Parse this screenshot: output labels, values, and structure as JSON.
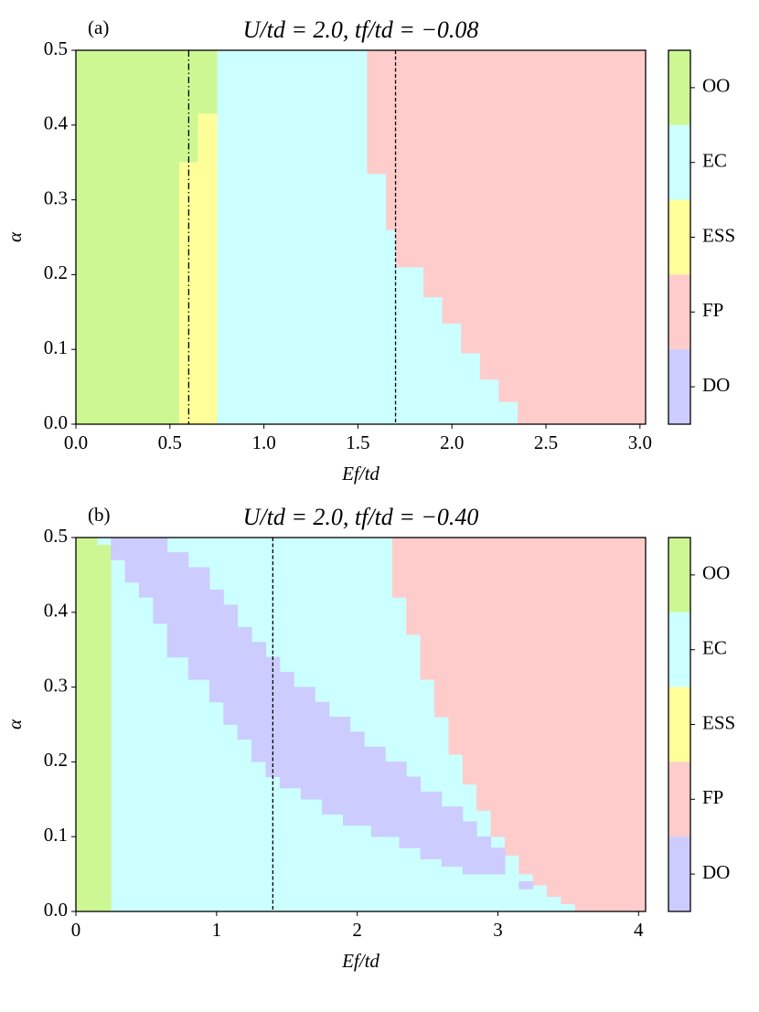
{
  "chart_data": [
    {
      "type": "phase",
      "panel_label": "(a)",
      "title": "U/td = 2.0,  tf/td = −0.08",
      "xlabel": "Ef/td",
      "ylabel": "α",
      "xlim": [
        0,
        3.03
      ],
      "ylim": [
        0,
        0.5
      ],
      "xticks": [
        {
          "value": 0,
          "label": "0.0"
        },
        {
          "value": 0.5,
          "label": "0.5"
        },
        {
          "value": 1,
          "label": "1.0"
        },
        {
          "value": 1.5,
          "label": "1.5"
        },
        {
          "value": 2,
          "label": "2.0"
        },
        {
          "value": 2.5,
          "label": "2.5"
        },
        {
          "value": 3,
          "label": "3.0"
        }
      ],
      "yticks": [
        {
          "value": 0,
          "label": "0.0"
        },
        0.1,
        0.2,
        0.3,
        0.4,
        0.5
      ],
      "background": "#ccffff",
      "regions": [
        {
          "color": "#cdf793",
          "x": [
            0,
            0.55,
            0.55,
            0.65,
            0.65,
            0.75,
            0.75,
            0
          ],
          "y": [
            0,
            0,
            0.35,
            0.35,
            0.415,
            0.415,
            0.5,
            0.5
          ]
        },
        {
          "color": "#ffff99",
          "x": [
            0.55,
            0.75,
            0.75,
            0.65,
            0.65,
            0.55
          ],
          "y": [
            0,
            0,
            0.415,
            0.415,
            0.35,
            0.35
          ]
        },
        {
          "color": "#ffcccc",
          "x": [
            1.55,
            3.03,
            3.03,
            2.35,
            2.35,
            2.25,
            2.25,
            2.15,
            2.15,
            2.05,
            2.05,
            1.95,
            1.95,
            1.85,
            1.85,
            1.7,
            1.7,
            1.65,
            1.65,
            1.55
          ],
          "y": [
            0.5,
            0.5,
            0,
            0,
            0.03,
            0.03,
            0.06,
            0.06,
            0.095,
            0.095,
            0.135,
            0.135,
            0.17,
            0.17,
            0.21,
            0.21,
            0.26,
            0.26,
            0.335,
            0.335
          ]
        }
      ],
      "vlines": [
        {
          "x": 0.6,
          "style": "dashdot"
        },
        {
          "x": 1.7,
          "style": "dashed"
        }
      ],
      "colorbar": {
        "labels": [
          "OO",
          "EC",
          "ESS",
          "FP",
          "DO"
        ],
        "colors": [
          "#cdf793",
          "#ccffff",
          "#ffff99",
          "#ffcccc",
          "#ccccff"
        ]
      }
    },
    {
      "type": "phase",
      "panel_label": "(b)",
      "title": "U/td = 2.0,  tf/td = −0.40",
      "xlabel": "Ef/td",
      "ylabel": "α",
      "xlim": [
        0,
        4.05
      ],
      "ylim": [
        0,
        0.5
      ],
      "xticks": [
        0,
        1,
        2,
        3,
        4
      ],
      "yticks": [
        {
          "value": 0,
          "label": "0.0"
        },
        0.1,
        0.2,
        0.3,
        0.4,
        0.5
      ],
      "background": "#ccffff",
      "regions": [
        {
          "color": "#cdf793",
          "x": [
            0,
            0.25,
            0.25,
            0.15,
            0.15,
            0
          ],
          "y": [
            0,
            0,
            0.49,
            0.49,
            0.5,
            0.5
          ]
        },
        {
          "color": "#ffcccc",
          "x": [
            2.25,
            4.05,
            4.05,
            3.55,
            3.55,
            3.45,
            3.45,
            3.35,
            3.35,
            3.25,
            3.25,
            3.15,
            3.15,
            3.05,
            3.05,
            2.95,
            2.95,
            2.85,
            2.85,
            2.75,
            2.75,
            2.65,
            2.65,
            2.55,
            2.55,
            2.45,
            2.45,
            2.35,
            2.35,
            2.25
          ],
          "y": [
            0.5,
            0.5,
            0,
            0,
            0.01,
            0.01,
            0.02,
            0.02,
            0.035,
            0.035,
            0.05,
            0.05,
            0.075,
            0.075,
            0.1,
            0.1,
            0.135,
            0.135,
            0.17,
            0.17,
            0.21,
            0.21,
            0.26,
            0.26,
            0.31,
            0.31,
            0.37,
            0.37,
            0.42,
            0.42
          ]
        },
        {
          "color": "#ccccff",
          "x": [
            0.25,
            0.65,
            0.65,
            0.8,
            0.8,
            0.95,
            0.95,
            1.05,
            1.05,
            1.15,
            1.15,
            1.25,
            1.25,
            1.35,
            1.35,
            1.45,
            1.45,
            1.55,
            1.55,
            1.7,
            1.7,
            1.8,
            1.8,
            1.95,
            1.95,
            2.05,
            2.05,
            2.2,
            2.2,
            2.35,
            2.35,
            2.45,
            2.45,
            2.6,
            2.6,
            2.75,
            2.75,
            2.85,
            2.85,
            2.95,
            2.95,
            3.05,
            3.05,
            2.75,
            2.75,
            2.6,
            2.6,
            2.45,
            2.45,
            2.3,
            2.3,
            2.1,
            2.1,
            1.9,
            1.9,
            1.75,
            1.75,
            1.6,
            1.6,
            1.45,
            1.45,
            1.35,
            1.35,
            1.25,
            1.25,
            1.15,
            1.15,
            1.05,
            1.05,
            0.95,
            0.95,
            0.8,
            0.8,
            0.65,
            0.65,
            0.55,
            0.55,
            0.45,
            0.45,
            0.35,
            0.35,
            0.25
          ],
          "y": [
            0.5,
            0.5,
            0.48,
            0.48,
            0.46,
            0.46,
            0.43,
            0.43,
            0.41,
            0.41,
            0.38,
            0.38,
            0.36,
            0.36,
            0.34,
            0.34,
            0.32,
            0.32,
            0.3,
            0.3,
            0.28,
            0.28,
            0.26,
            0.26,
            0.24,
            0.24,
            0.22,
            0.22,
            0.2,
            0.2,
            0.18,
            0.18,
            0.16,
            0.16,
            0.14,
            0.14,
            0.12,
            0.12,
            0.1,
            0.1,
            0.085,
            0.085,
            0.05,
            0.05,
            0.06,
            0.06,
            0.07,
            0.07,
            0.085,
            0.085,
            0.1,
            0.1,
            0.115,
            0.115,
            0.13,
            0.13,
            0.15,
            0.15,
            0.165,
            0.165,
            0.18,
            0.18,
            0.2,
            0.2,
            0.23,
            0.23,
            0.25,
            0.25,
            0.28,
            0.28,
            0.31,
            0.31,
            0.34,
            0.34,
            0.385,
            0.385,
            0.42,
            0.42,
            0.44,
            0.44,
            0.47,
            0.47
          ]
        },
        {
          "color": "#ccccff",
          "x": [
            3.15,
            3.25,
            3.25,
            3.15
          ],
          "y": [
            0.03,
            0.03,
            0.04,
            0.04
          ]
        }
      ],
      "vlines": [
        {
          "x": 1.4,
          "style": "dashed"
        }
      ],
      "colorbar": {
        "labels": [
          "OO",
          "EC",
          "ESS",
          "FP",
          "DO"
        ],
        "colors": [
          "#cdf793",
          "#ccffff",
          "#ffff99",
          "#ffcccc",
          "#ccccff"
        ]
      }
    }
  ]
}
